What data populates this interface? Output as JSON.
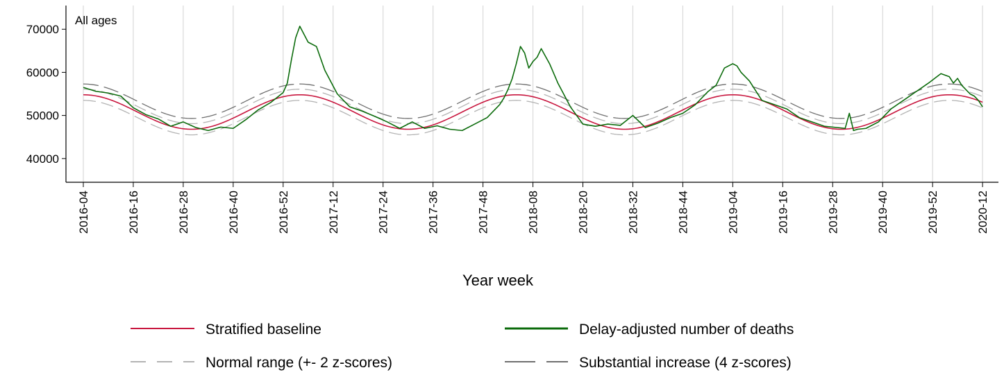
{
  "chart_data": {
    "type": "line",
    "panel_label": "All ages",
    "xlabel": "Year week",
    "ylabel": "",
    "ylim": [
      34500,
      75500
    ],
    "y_ticks": [
      40000,
      50000,
      60000,
      70000
    ],
    "x_ticks": [
      "2016-04",
      "2016-16",
      "2016-28",
      "2016-40",
      "2016-52",
      "2017-12",
      "2017-24",
      "2017-36",
      "2017-48",
      "2018-08",
      "2018-20",
      "2018-32",
      "2018-44",
      "2019-04",
      "2019-16",
      "2019-28",
      "2019-40",
      "2019-52",
      "2020-12"
    ],
    "grid": "vertical",
    "legend_position": "bottom",
    "colors": {
      "baseline": "#c8163e",
      "deaths": "#0b6b0b",
      "normal_range": "#b3b3b3",
      "substantial_increase": "#6e6e6e"
    },
    "legend": [
      {
        "key": "baseline",
        "label": "Stratified baseline",
        "style": "solid"
      },
      {
        "key": "deaths",
        "label": "Delay-adjusted number of deaths",
        "style": "solid-bold"
      },
      {
        "key": "normal_range",
        "label": "Normal range (+- 2 z-scores)",
        "style": "dashed"
      },
      {
        "key": "substantial_increase",
        "label": "Substantial increase (4 z-scores)",
        "style": "dashed"
      }
    ],
    "baseline_model": {
      "mean": 50800,
      "amplitude": 4000,
      "period_weeks": 52,
      "peak_week_offset": 0,
      "normal_range_z_spread": 1300,
      "substantial_increase_offset": 2500
    },
    "deaths_series": {
      "name": "Delay-adjusted number of deaths",
      "x_week_index": [
        0,
        3,
        6,
        9,
        12,
        15,
        18,
        21,
        24,
        27,
        30,
        33,
        36,
        39,
        42,
        45,
        48,
        49,
        50,
        51,
        52,
        54,
        56,
        58,
        61,
        64,
        67,
        70,
        73,
        76,
        79,
        82,
        85,
        88,
        91,
        94,
        97,
        100,
        101,
        102,
        103,
        104,
        105,
        106,
        107,
        108,
        109,
        110,
        112,
        114,
        117,
        120,
        123,
        126,
        129,
        132,
        135,
        138,
        141,
        144,
        147,
        150,
        152,
        154,
        155,
        156,
        157,
        158,
        160,
        163,
        166,
        169,
        172,
        175,
        178,
        181,
        183,
        184,
        185,
        186,
        188,
        191,
        194,
        197,
        200,
        203,
        206,
        208,
        209,
        210,
        211,
        212,
        213,
        214,
        215,
        216
      ],
      "values": [
        56500,
        55600,
        55200,
        54500,
        51800,
        50200,
        49200,
        47500,
        48500,
        47200,
        46500,
        47300,
        47000,
        49000,
        51300,
        53000,
        55300,
        57500,
        63000,
        68000,
        70700,
        67000,
        66000,
        60500,
        55000,
        52000,
        51000,
        49800,
        48500,
        47000,
        48500,
        47000,
        47600,
        46800,
        46500,
        48000,
        49500,
        52500,
        54000,
        56000,
        58500,
        62000,
        66000,
        64500,
        61000,
        62500,
        63500,
        65500,
        62000,
        57500,
        52000,
        48000,
        47500,
        48000,
        47700,
        50000,
        47200,
        48200,
        49500,
        50500,
        52500,
        55500,
        57000,
        61000,
        61500,
        62000,
        61500,
        60000,
        58000,
        53500,
        52500,
        51500,
        49500,
        48500,
        47500,
        47200,
        47000,
        50500,
        46500,
        46800,
        47000,
        48500,
        51500,
        53500,
        55500,
        57500,
        59700,
        59000,
        57500,
        58600,
        57000,
        56000,
        55000,
        54500,
        53500,
        52000
      ]
    }
  }
}
